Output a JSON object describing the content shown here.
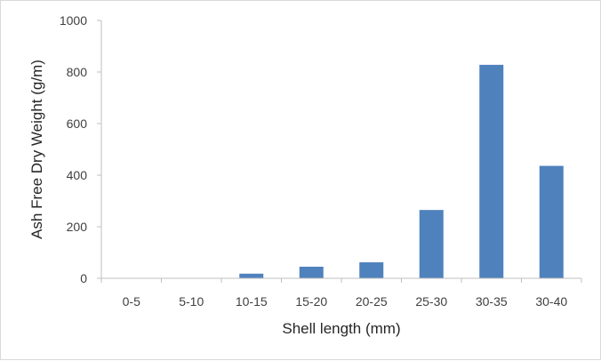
{
  "chart_data": {
    "type": "bar",
    "xlabel": "Shell length (mm)",
    "ylabel": "Ash Free Dry Weight (g/m)",
    "categories": [
      "0-5",
      "5-10",
      "10-15",
      "15-20",
      "20-25",
      "25-30",
      "30-35",
      "30-40"
    ],
    "values": [
      0,
      0,
      18,
      45,
      62,
      265,
      828,
      436
    ],
    "ylim": [
      0,
      1000
    ],
    "yticks": [
      0,
      200,
      400,
      600,
      800,
      1000
    ],
    "bar_color": "#4f81bd",
    "grid": false,
    "legend": "none"
  }
}
